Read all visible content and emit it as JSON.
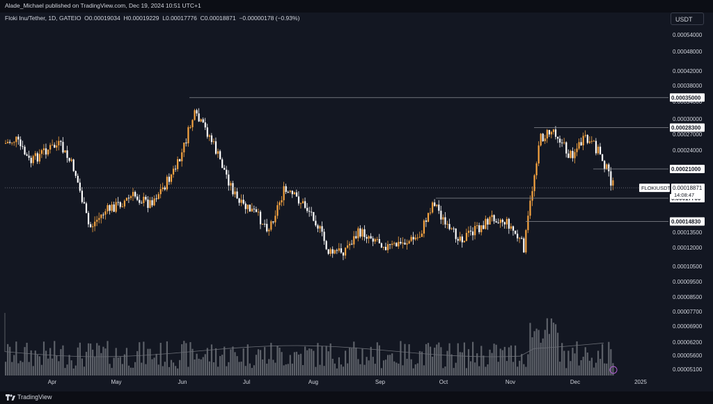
{
  "header": {
    "published": "Alade_Michael published on TradingView.com, Dec 19, 2024 10:51 UTC+1"
  },
  "legend": {
    "symbol": "Floki Inu/Tether, 1D, GATEIO",
    "o_label": "O",
    "o": "0.00019034",
    "h_label": "H",
    "h": "0.00019229",
    "l_label": "L",
    "l": "0.00017776",
    "c_label": "C",
    "c": "0.00018871",
    "change": "−0.00000178 (−0.93%)"
  },
  "unit_button": "USDT",
  "brand": "TradingView",
  "colors": {
    "background": "#131722",
    "up": "#f7a440",
    "down": "#ffffff",
    "volume": "#6b6e76",
    "level_line": "#8c8f96",
    "text": "#d1d4dc"
  },
  "chart_data": {
    "type": "candlestick",
    "symbol": "FLOKIUSDT",
    "timeframe": "1D",
    "exchange": "GATEIO",
    "y_axis_labels": [
      "0.00054000",
      "0.00048000",
      "0.00042000",
      "0.00038000",
      "0.00034000",
      "0.00030000",
      "0.00027000",
      "0.00024000",
      "0.00021000",
      "0.00017700",
      "0.00013500",
      "0.00012000",
      "0.00010500",
      "0.00009500",
      "0.00008500",
      "0.00007700",
      "0.00006900",
      "0.00006200",
      "0.00005600",
      "0.00005100"
    ],
    "x_axis_labels": [
      "Apr",
      "May",
      "Jun",
      "Jul",
      "Aug",
      "Sep",
      "Oct",
      "Nov",
      "Dec",
      "2025"
    ],
    "levels": [
      {
        "value": "0.00035000",
        "label": "0.00035000"
      },
      {
        "value": "0.00028300",
        "label": "0.00028300"
      },
      {
        "value": "0.00021000",
        "label": "0.00021000"
      },
      {
        "value": "0.00017700",
        "label": "0.00017700"
      },
      {
        "value": "0.00014830",
        "label": "0.00014830"
      }
    ],
    "last_price": {
      "symbol": "FLOKIUSDT",
      "value": "0.00018871",
      "countdown": "14:08:47"
    },
    "approx_closes": [
      {
        "date": "Mar 7",
        "close": 0.00025
      },
      {
        "date": "Mar 14",
        "close": 0.00026
      },
      {
        "date": "Mar 21",
        "close": 0.00022
      },
      {
        "date": "Mar 28",
        "close": 0.00024
      },
      {
        "date": "Apr 4",
        "close": 0.00025
      },
      {
        "date": "Apr 11",
        "close": 0.00021
      },
      {
        "date": "Apr 18",
        "close": 0.00014
      },
      {
        "date": "Apr 25",
        "close": 0.00016
      },
      {
        "date": "May 2",
        "close": 0.00017
      },
      {
        "date": "May 9",
        "close": 0.00018
      },
      {
        "date": "May 16",
        "close": 0.00017
      },
      {
        "date": "May 23",
        "close": 0.00019
      },
      {
        "date": "May 30",
        "close": 0.00022
      },
      {
        "date": "Jun 6",
        "close": 0.00031
      },
      {
        "date": "Jun 13",
        "close": 0.00027
      },
      {
        "date": "Jun 20",
        "close": 0.00021
      },
      {
        "date": "Jun 27",
        "close": 0.00017
      },
      {
        "date": "Jul 4",
        "close": 0.00016
      },
      {
        "date": "Jul 11",
        "close": 0.00014
      },
      {
        "date": "Jul 18",
        "close": 0.000185
      },
      {
        "date": "Jul 25",
        "close": 0.000175
      },
      {
        "date": "Aug 1",
        "close": 0.000155
      },
      {
        "date": "Aug 8",
        "close": 0.000115
      },
      {
        "date": "Aug 15",
        "close": 0.000118
      },
      {
        "date": "Aug 22",
        "close": 0.000135
      },
      {
        "date": "Aug 29",
        "close": 0.00013
      },
      {
        "date": "Sep 5",
        "close": 0.00012
      },
      {
        "date": "Sep 12",
        "close": 0.000125
      },
      {
        "date": "Sep 19",
        "close": 0.00013
      },
      {
        "date": "Sep 26",
        "close": 0.000175
      },
      {
        "date": "Oct 3",
        "close": 0.000135
      },
      {
        "date": "Oct 10",
        "close": 0.00013
      },
      {
        "date": "Oct 17",
        "close": 0.00014
      },
      {
        "date": "Oct 24",
        "close": 0.000155
      },
      {
        "date": "Oct 31",
        "close": 0.000145
      },
      {
        "date": "Nov 7",
        "close": 0.00012
      },
      {
        "date": "Nov 14",
        "close": 0.00026
      },
      {
        "date": "Nov 21",
        "close": 0.00028
      },
      {
        "date": "Nov 28",
        "close": 0.00023
      },
      {
        "date": "Dec 5",
        "close": 0.00026
      },
      {
        "date": "Dec 12",
        "close": 0.00024
      },
      {
        "date": "Dec 19",
        "close": 0.00018871
      }
    ]
  }
}
